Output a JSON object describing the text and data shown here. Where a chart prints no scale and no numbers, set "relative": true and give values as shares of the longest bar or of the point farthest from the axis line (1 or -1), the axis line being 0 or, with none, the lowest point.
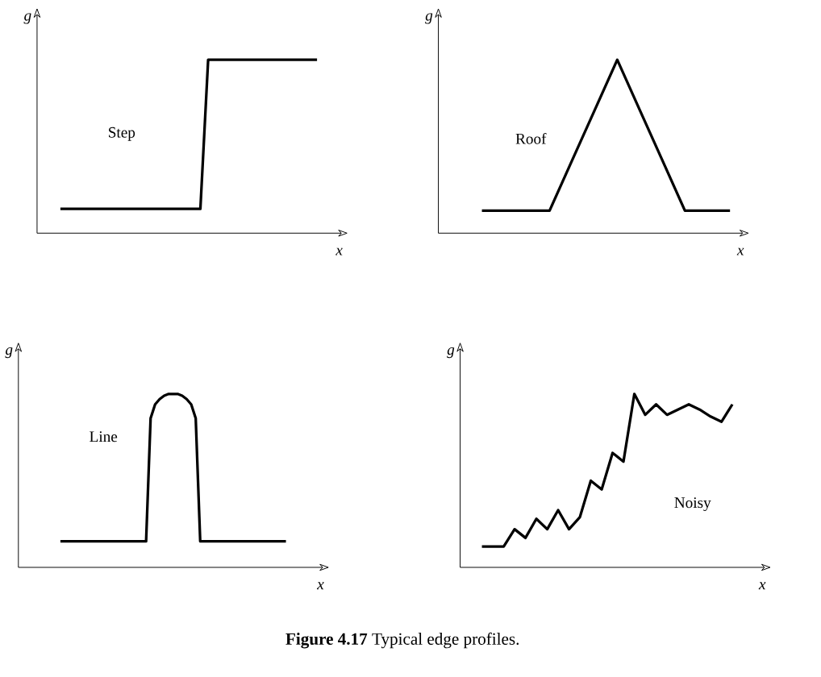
{
  "chart_data": [
    {
      "type": "line",
      "relative": true,
      "xlabel": "x",
      "ylabel": "g",
      "tick_labels": false,
      "categories": [
        null,
        null,
        null,
        null,
        null,
        null,
        null,
        null,
        null,
        null,
        null,
        null,
        null,
        null,
        null,
        null,
        null,
        null,
        null,
        null,
        null,
        null,
        null,
        null,
        null,
        null,
        null,
        null,
        null,
        null,
        null,
        null,
        null,
        null
      ],
      "series": [
        {
          "name": "Step",
          "color": "#000000",
          "values": [
            0.14,
            0.14,
            0.14,
            0.14,
            0.14,
            0.14,
            0.14,
            0.14,
            0.14,
            0.14,
            0.14,
            0.14,
            0.14,
            0.14,
            0.14,
            0.14,
            0.14,
            0.14,
            0.14,
            1,
            1,
            1,
            1,
            1,
            1,
            1,
            1,
            1,
            1,
            1,
            1,
            1,
            1,
            1
          ]
        }
      ]
    },
    {
      "type": "line",
      "relative": true,
      "xlabel": "x",
      "ylabel": "g",
      "tick_labels": false,
      "categories": [
        null,
        null,
        null,
        null,
        null,
        null,
        null,
        null,
        null,
        null,
        null,
        null
      ],
      "series": [
        {
          "name": "Roof",
          "color": "#000000",
          "values": [
            0.13,
            0.13,
            0.13,
            0.13,
            0.42,
            0.71,
            1,
            0.71,
            0.42,
            0.13,
            0.13,
            0.13
          ]
        }
      ]
    },
    {
      "type": "line",
      "relative": true,
      "xlabel": "x",
      "ylabel": "g",
      "tick_labels": false,
      "categories": [
        null,
        null,
        null,
        null,
        null,
        null,
        null,
        null,
        null,
        null,
        null,
        null,
        null,
        null,
        null,
        null,
        null,
        null,
        null,
        null,
        null,
        null,
        null,
        null,
        null,
        null,
        null,
        null,
        null,
        null,
        null,
        null,
        null,
        null,
        null,
        null,
        null,
        null,
        null,
        null,
        null,
        null,
        null,
        null,
        null,
        null,
        null,
        null,
        null,
        null,
        null
      ],
      "series": [
        {
          "name": "Line",
          "color": "#000000",
          "values": [
            0.15,
            0.15,
            0.15,
            0.15,
            0.15,
            0.15,
            0.15,
            0.15,
            0.15,
            0.15,
            0.15,
            0.15,
            0.15,
            0.15,
            0.15,
            0.15,
            0.15,
            0.15,
            0.15,
            0.15,
            0.86,
            0.94,
            0.97,
            0.99,
            1,
            1,
            1,
            0.99,
            0.97,
            0.94,
            0.86,
            0.15,
            0.15,
            0.15,
            0.15,
            0.15,
            0.15,
            0.15,
            0.15,
            0.15,
            0.15,
            0.15,
            0.15,
            0.15,
            0.15,
            0.15,
            0.15,
            0.15,
            0.15,
            0.15,
            0.15
          ]
        }
      ]
    },
    {
      "type": "line",
      "relative": true,
      "xlabel": "x",
      "ylabel": "g",
      "tick_labels": false,
      "annotations": [
        "**Figure 4.17** Typical edge profiles."
      ],
      "categories": [
        null,
        null,
        null,
        null,
        null,
        null,
        null,
        null,
        null,
        null,
        null,
        null,
        null,
        null,
        null,
        null,
        null,
        null,
        null,
        null,
        null,
        null,
        null,
        null
      ],
      "series": [
        {
          "name": "Noisy",
          "color": "#000000",
          "values": [
            0.12,
            0.12,
            0.12,
            0.22,
            0.17,
            0.28,
            0.22,
            0.33,
            0.22,
            0.29,
            0.5,
            0.45,
            0.66,
            0.61,
            1,
            0.88,
            0.94,
            0.88,
            0.91,
            0.94,
            0.91,
            0.87,
            0.84,
            0.94
          ]
        }
      ]
    }
  ]
}
